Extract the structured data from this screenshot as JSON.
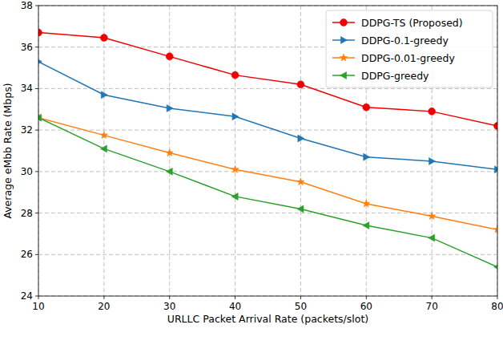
{
  "chart_data": {
    "type": "line",
    "x_label": "URLLC Packet Arrival Rate (packets/slot)",
    "y_label": "Average eMbb Rate (Mbps)",
    "x": [
      10,
      20,
      30,
      40,
      50,
      60,
      70,
      80
    ],
    "xlim": [
      10,
      80
    ],
    "xticks": [
      10,
      20,
      30,
      40,
      50,
      60,
      70,
      80
    ],
    "ylim": [
      24,
      38
    ],
    "yticks": [
      24,
      26,
      28,
      30,
      32,
      34,
      36,
      38
    ],
    "grid": true,
    "legend": "upper right",
    "series": [
      {
        "name": "DDPG-TS (Proposed)",
        "color": "#f00000",
        "marker": "circle",
        "line_style": "solid",
        "values": [
          36.7,
          36.45,
          35.55,
          34.65,
          34.2,
          33.1,
          32.9,
          32.2
        ]
      },
      {
        "name": "DDPG-0.1-greedy",
        "color": "#1f77b4",
        "marker": "triangle-right",
        "line_style": "solid",
        "values": [
          35.3,
          33.7,
          33.05,
          32.65,
          31.6,
          30.7,
          30.5,
          30.1
        ]
      },
      {
        "name": "DDPG-0.01-greedy",
        "color": "#ff7f0e",
        "marker": "star",
        "line_style": "solid",
        "values": [
          32.6,
          31.75,
          30.9,
          30.1,
          29.5,
          28.45,
          27.85,
          27.2
        ]
      },
      {
        "name": "DDPG-greedy",
        "color": "#2ca02c",
        "marker": "triangle-left",
        "line_style": "solid",
        "values": [
          32.6,
          31.1,
          30.0,
          28.8,
          28.2,
          27.4,
          26.8,
          25.4
        ]
      }
    ]
  }
}
